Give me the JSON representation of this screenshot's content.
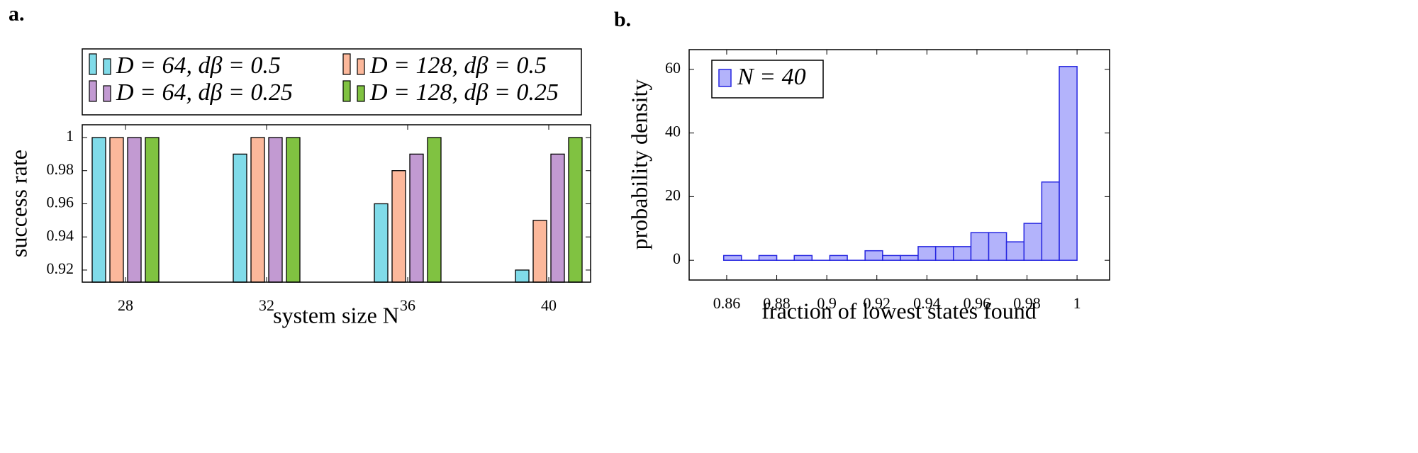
{
  "chart_data": [
    {
      "type": "bar",
      "panel_label": "a.",
      "xlabel": "system size N",
      "ylabel": "success rate",
      "categories": [
        "28",
        "32",
        "36",
        "40"
      ],
      "series": [
        {
          "name": "D = 64,  dβ = 0.5",
          "color": "#80dbe9",
          "values": [
            1,
            0.99,
            0.96,
            0.92
          ]
        },
        {
          "name": "D = 128,  dβ = 0.5",
          "color": "#fcb89b",
          "values": [
            1,
            1,
            0.98,
            0.95
          ]
        },
        {
          "name": "D = 64,  dβ = 0.25",
          "color": "#c29ad2",
          "values": [
            1,
            1,
            0.99,
            0.99
          ]
        },
        {
          "name": "D = 128,  dβ = 0.25",
          "color": "#80c241",
          "values": [
            1,
            1,
            1,
            1
          ]
        }
      ],
      "ylim": [
        0.9127,
        1.0077
      ],
      "yticks": [
        0.92,
        0.94,
        0.96,
        0.98,
        1
      ],
      "legend": "above"
    },
    {
      "type": "histogram",
      "panel_label": "b.",
      "xlabel": "fraction of lowest states found",
      "ylabel": "probability density",
      "series_name": "N = 40",
      "color": "#b3b3fb",
      "edgecolor": "#2626e0",
      "bins": [
        0.8588,
        0.8659,
        0.8729,
        0.88,
        0.887,
        0.8941,
        0.9012,
        0.9082,
        0.9153,
        0.9223,
        0.9294,
        0.9365,
        0.9435,
        0.9506,
        0.9576,
        0.9647,
        0.9718,
        0.9788,
        0.9859,
        0.9929,
        1.0
      ],
      "values": [
        1.5,
        0,
        1.5,
        0,
        1.5,
        0,
        1.5,
        0,
        3,
        1.5,
        1.5,
        4.3,
        4.3,
        4.3,
        8.7,
        8.7,
        5.8,
        11.6,
        24.6,
        60.9
      ],
      "xlim": [
        0.845,
        1.013
      ],
      "ylim": [
        -6.2,
        66.2
      ],
      "xticks": [
        0.86,
        0.88,
        0.9,
        0.92,
        0.94,
        0.96,
        0.98,
        1
      ],
      "yticks": [
        0,
        20,
        40,
        60
      ],
      "legend": "upper left"
    }
  ]
}
